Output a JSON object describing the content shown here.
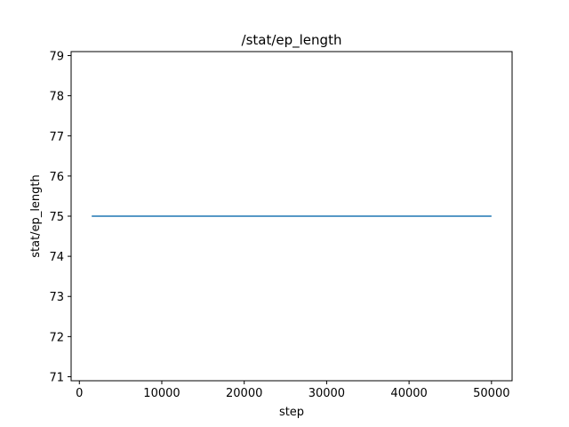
{
  "chart_data": {
    "type": "line",
    "title": "/stat/ep_length",
    "xlabel": "step",
    "ylabel": "stat/ep_length",
    "xlim": [
      -1000,
      52500
    ],
    "ylim": [
      70.9,
      79.1
    ],
    "xticks": [
      0,
      10000,
      20000,
      30000,
      40000,
      50000
    ],
    "yticks": [
      71,
      72,
      73,
      74,
      75,
      76,
      77,
      78,
      79
    ],
    "grid": false,
    "legend": "none",
    "series": [
      {
        "color": "#1f77b4",
        "x": [
          1500,
          50000
        ],
        "y": [
          75,
          75
        ]
      }
    ]
  }
}
